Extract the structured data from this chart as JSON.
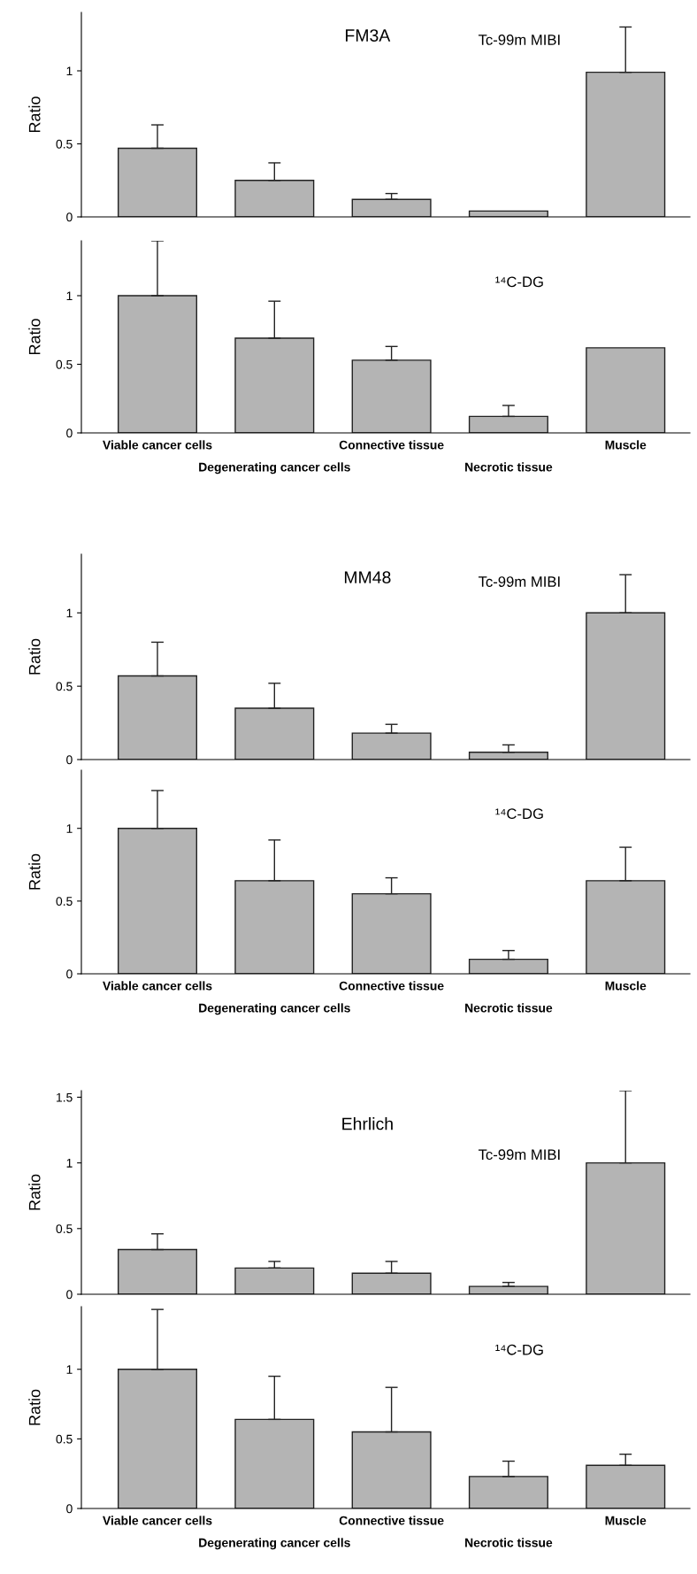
{
  "chart_data": [
    {
      "type": "bar",
      "title": "FM3A",
      "subtitle": "Tc-99m MIBI",
      "ylabel": "Ratio",
      "categories": [
        null,
        null,
        null,
        null,
        null
      ],
      "values": [
        0.47,
        0.25,
        0.12,
        0.04,
        0.99
      ],
      "errors": [
        [
          0.47,
          0.63
        ],
        [
          0.25,
          0.37
        ],
        [
          0.12,
          0.16
        ],
        null,
        [
          0.99,
          1.3
        ]
      ],
      "color": "#b4b4b4",
      "ylim": [
        0,
        1.4
      ],
      "yticks": [
        0,
        0.5,
        1
      ],
      "tick_labels": "y",
      "grid": false
    },
    {
      "type": "bar",
      "subtitle": "¹⁴C-DG",
      "ylabel": "Ratio",
      "categories": [
        "Viable cancer cells",
        "Degenerating cancer cells",
        "Connective tissue",
        "Necrotic tissue",
        "Muscle"
      ],
      "values": [
        1.0,
        0.69,
        0.53,
        0.12,
        0.62
      ],
      "errors": [
        [
          1.0,
          1.4
        ],
        [
          0.69,
          0.96
        ],
        [
          0.53,
          0.63
        ],
        [
          0.12,
          0.2
        ],
        null
      ],
      "color": "#b4b4b4",
      "ylim": [
        0,
        1.4
      ],
      "yticks": [
        0,
        0.5,
        1
      ],
      "grid": false
    },
    {
      "type": "bar",
      "title": "MM48",
      "subtitle": "Tc-99m MIBI",
      "ylabel": "Ratio",
      "categories": [
        null,
        null,
        null,
        null,
        null
      ],
      "values": [
        0.57,
        0.35,
        0.18,
        0.05,
        1.0
      ],
      "errors": [
        [
          0.57,
          0.8
        ],
        [
          0.35,
          0.52
        ],
        [
          0.18,
          0.24
        ],
        [
          0.05,
          0.1
        ],
        [
          1.0,
          1.26
        ]
      ],
      "color": "#b4b4b4",
      "ylim": [
        0,
        1.4
      ],
      "yticks": [
        0,
        0.5,
        1
      ],
      "tick_labels": "y",
      "grid": false
    },
    {
      "type": "bar",
      "subtitle": "¹⁴C-DG",
      "ylabel": "Ratio",
      "categories": [
        "Viable cancer cells",
        "Degenerating cancer cells",
        "Connective tissue",
        "Necrotic tissue",
        "Muscle"
      ],
      "values": [
        1.0,
        0.64,
        0.55,
        0.1,
        0.64
      ],
      "errors": [
        [
          1.0,
          1.26
        ],
        [
          0.64,
          0.92
        ],
        [
          0.55,
          0.66
        ],
        [
          0.1,
          0.16
        ],
        [
          0.64,
          0.87
        ]
      ],
      "color": "#b4b4b4",
      "ylim": [
        0,
        1.4
      ],
      "yticks": [
        0,
        0.5,
        1
      ],
      "grid": false
    },
    {
      "type": "bar",
      "title": "Ehrlich",
      "subtitle": "Tc-99m MIBI",
      "ylabel": "Ratio",
      "categories": [
        null,
        null,
        null,
        null,
        null
      ],
      "values": [
        0.34,
        0.2,
        0.16,
        0.06,
        1.0
      ],
      "errors": [
        [
          0.34,
          0.46
        ],
        [
          0.2,
          0.25
        ],
        [
          0.16,
          0.25
        ],
        [
          0.06,
          0.09
        ],
        [
          1.0,
          1.55
        ]
      ],
      "color": "#b4b4b4",
      "ylim": [
        0,
        1.55
      ],
      "yticks": [
        0,
        0.5,
        1,
        1.5
      ],
      "tick_labels": "y",
      "grid": false
    },
    {
      "type": "bar",
      "subtitle": "¹⁴C-DG",
      "ylabel": "Ratio",
      "categories": [
        "Viable cancer cells",
        "Degenerating cancer cells",
        "Connective tissue",
        "Necrotic tissue",
        "Muscle"
      ],
      "values": [
        1.0,
        0.64,
        0.55,
        0.23,
        0.31
      ],
      "errors": [
        [
          1.0,
          1.43
        ],
        [
          0.64,
          0.95
        ],
        [
          0.55,
          0.87
        ],
        [
          0.23,
          0.34
        ],
        [
          0.31,
          0.39
        ]
      ],
      "color": "#b4b4b4",
      "ylim": [
        0,
        1.45
      ],
      "yticks": [
        0,
        0.5,
        1
      ],
      "grid": false
    }
  ]
}
